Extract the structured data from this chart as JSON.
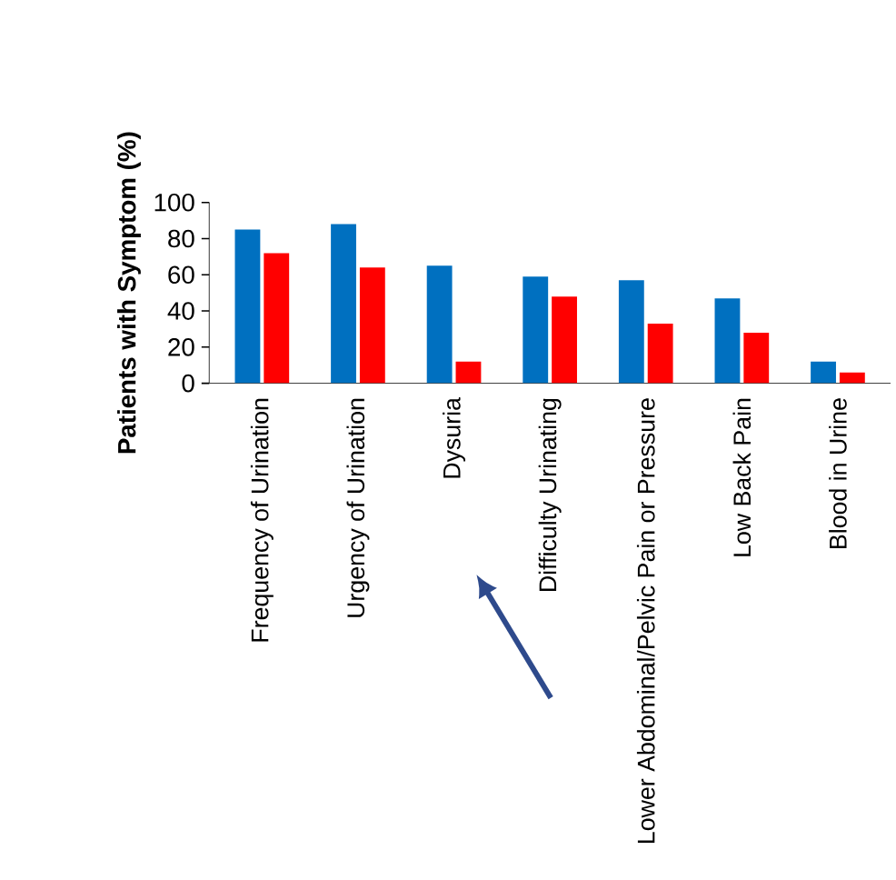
{
  "chart_data": {
    "type": "bar",
    "ylabel": "Patients with Symptom (%)",
    "categories": [
      "Frequency of Urination",
      "Urgency of Urination",
      "Dysuria",
      "Difficulty Urinating",
      "Lower Abdominal/Pelvic Pain or Pressure",
      "Low Back Pain",
      "Blood in Urine"
    ],
    "series": [
      {
        "color": "#0070c0",
        "values": [
          85,
          88,
          65,
          59,
          57,
          47,
          12
        ]
      },
      {
        "color": "#ff0000",
        "values": [
          72,
          64,
          12,
          48,
          33,
          28,
          6
        ]
      }
    ],
    "ylim": [
      0,
      100
    ],
    "yticks": [
      0,
      20,
      40,
      60,
      80,
      100
    ],
    "grid": false
  }
}
